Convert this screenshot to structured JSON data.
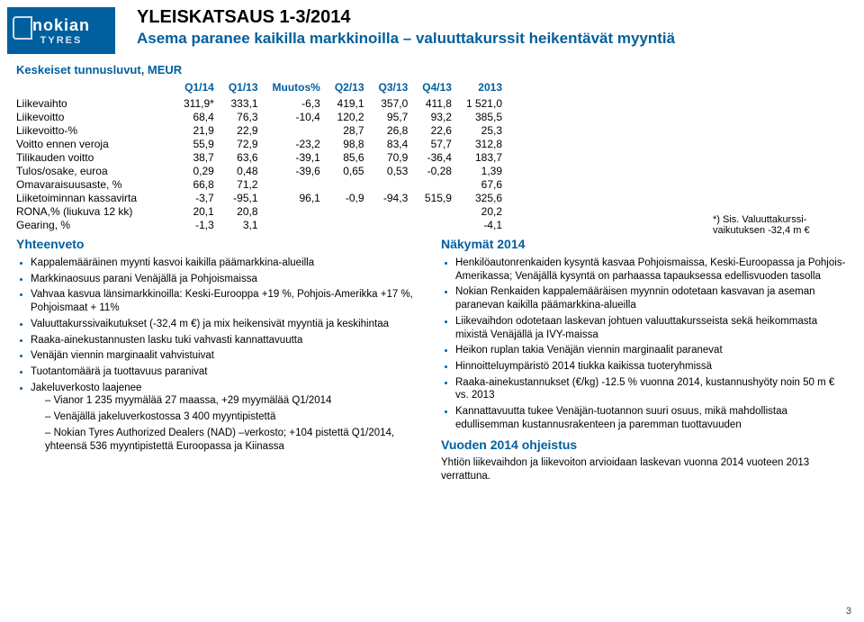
{
  "logo": {
    "line1": "nokian",
    "line2": "TYRES"
  },
  "title": "YLEISKATSAUS 1-3/2014",
  "subtitle": "Asema paranee kaikilla markkinoilla – valuuttakurssit heikentävät myyntiä",
  "metrics_label": "Keskeiset tunnusluvut, MEUR",
  "metrics_columns": [
    "",
    "Q1/14",
    "Q1/13",
    "Muutos%",
    "Q2/13",
    "Q3/13",
    "Q4/13",
    "2013"
  ],
  "metrics_rows": [
    [
      "Liikevaihto",
      "311,9*",
      "333,1",
      "-6,3",
      "419,1",
      "357,0",
      "411,8",
      "1 521,0"
    ],
    [
      "Liikevoitto",
      "68,4",
      "76,3",
      "-10,4",
      "120,2",
      "95,7",
      "93,2",
      "385,5"
    ],
    [
      "Liikevoitto-%",
      "21,9",
      "22,9",
      "",
      "28,7",
      "26,8",
      "22,6",
      "25,3"
    ],
    [
      "Voitto ennen veroja",
      "55,9",
      "72,9",
      "-23,2",
      "98,8",
      "83,4",
      "57,7",
      "312,8"
    ],
    [
      "Tilikauden voitto",
      "38,7",
      "63,6",
      "-39,1",
      "85,6",
      "70,9",
      "-36,4",
      "183,7"
    ],
    [
      "Tulos/osake, euroa",
      "0,29",
      "0,48",
      "-39,6",
      "0,65",
      "0,53",
      "-0,28",
      "1,39"
    ],
    [
      "Omavaraisuusaste, %",
      "66,8",
      "71,2",
      "",
      "",
      "",
      "",
      "67,6"
    ],
    [
      "Liiketoiminnan kassavirta",
      "-3,7",
      "-95,1",
      "96,1",
      "-0,9",
      "-94,3",
      "515,9",
      "325,6"
    ],
    [
      "RONA,% (liukuva 12 kk)",
      "20,1",
      "20,8",
      "",
      "",
      "",
      "",
      "20,2"
    ],
    [
      "Gearing, %",
      "-1,3",
      "3,1",
      "",
      "",
      "",
      "",
      "-4,1"
    ]
  ],
  "footnote": "*) Sis. Valuuttakurssi­vaikutuksen -32,4 m €",
  "left_col": {
    "title": "Yhteenveto",
    "items": [
      "Kappalemääräinen myynti kasvoi kaikilla päämarkkina-alueilla",
      "Markkinaosuus parani Venäjällä ja Pohjoismaissa",
      "Vahvaa kasvua länsimarkkinoilla: Keski-Eurooppa +19 %, Pohjois-Amerikka +17 %, Pohjoismaat + 11%",
      "Valuuttakurssivaikutukset (-32,4 m €) ja mix heikensivät myyntiä ja keskihintaa",
      "Raaka-ainekustannusten lasku tuki vahvasti kannattavuutta",
      "Venäjän viennin marginaalit vahvistuivat",
      "Tuotantomäärä ja tuottavuus paranivat",
      "Jakeluverkosto laajenee"
    ],
    "subitems": [
      "Vianor 1 235 myymälää 27 maassa, +29 myymälää Q1/2014",
      "Venäjällä jakeluverkostossa 3 400 myyntipistettä",
      "Nokian Tyres Authorized Dealers (NAD) –verkosto; +104 pistettä Q1/2014, yhteensä 536 myyntipistettä Euroopassa ja Kiinassa"
    ]
  },
  "right_col": {
    "title": "Näkymät 2014",
    "items": [
      "Henkilöautonrenkaiden kysyntä kasvaa Pohjoismaissa, Keski-Euroopassa ja Pohjois-Amerikassa; Venäjällä kysyntä on parhaassa tapauksessa edellisvuoden tasolla",
      "Nokian Renkaiden kappalemääräisen myynnin odotetaan kasvavan ja aseman paranevan kaikilla päämarkkina-alueilla",
      "Liikevaihdon odotetaan laskevan johtuen valuuttakursseista sekä heikommasta mixistä Venäjällä ja IVY-maissa",
      "Heikon ruplan takia Venäjän viennin marginaalit paranevat",
      "Hinnoitteluympäristö 2014 tiukka kaikissa tuoteryhmissä",
      "Raaka-ainekustannukset (€/kg) -12.5 % vuonna 2014, kustannushyöty noin 50 m € vs. 2013",
      "Kannattavuutta tukee Venäjän-tuotannon suuri osuus, mikä mahdollistaa edullisemman kustannusrakenteen ja paremman tuottavuuden"
    ],
    "guidance_title": "Vuoden 2014 ohjeistus",
    "guidance": "Yhtiön liikevaihdon ja liikevoiton arvioidaan laskevan vuonna 2014 vuoteen 2013 verrattuna."
  },
  "pagenum": "3"
}
